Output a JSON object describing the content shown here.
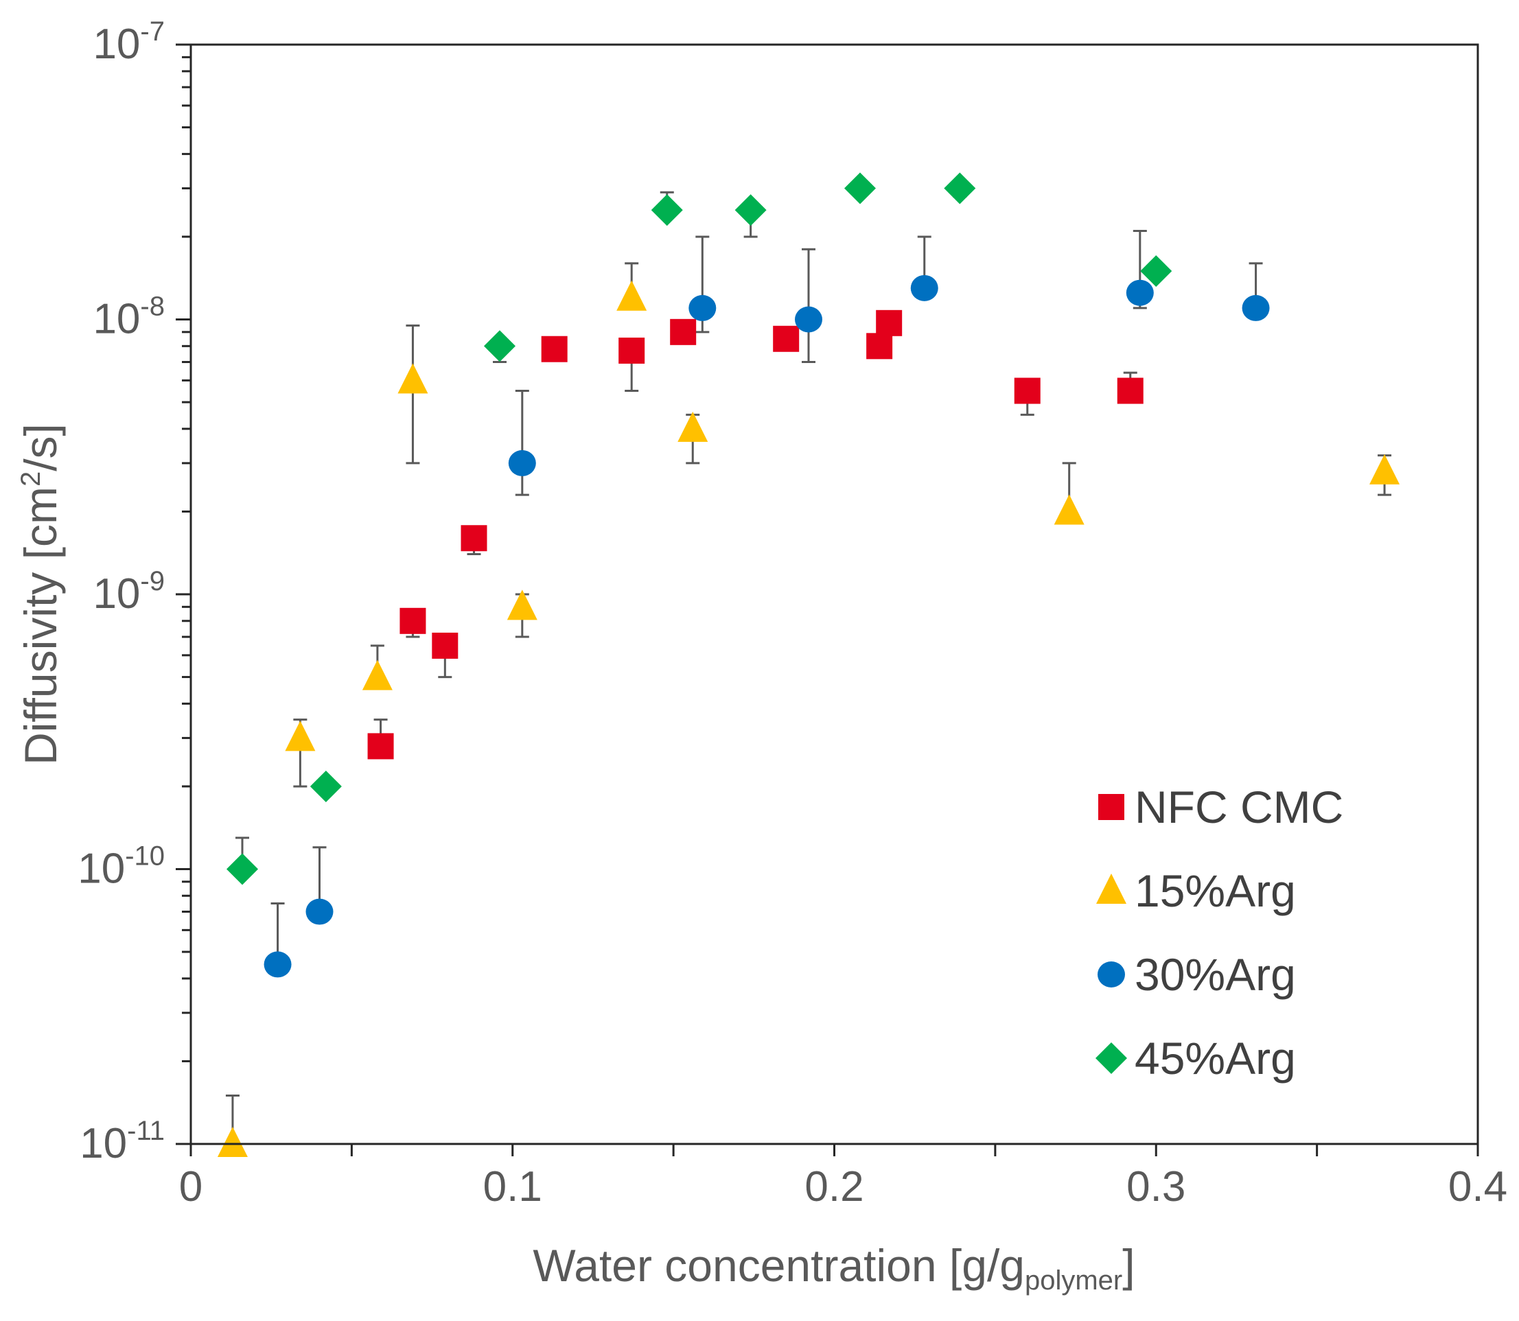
{
  "chart_data": {
    "type": "scatter",
    "xlabel": {
      "main": "Water concentration [g/g",
      "subscript": "polymer",
      "suffix": "]"
    },
    "ylabel": {
      "main": "Diffusivity [cm",
      "superscript": "2",
      "suffix": "/s]"
    },
    "xlim": [
      0,
      0.4
    ],
    "ylim": [
      1e-11,
      1e-07
    ],
    "y_scale": "log",
    "grid": false,
    "legend_position": "right",
    "x_ticks": [
      {
        "value": 0,
        "label": "0"
      },
      {
        "value": 0.1,
        "label": "0.1"
      },
      {
        "value": 0.2,
        "label": "0.2"
      },
      {
        "value": 0.3,
        "label": "0.3"
      },
      {
        "value": 0.4,
        "label": "0.4"
      }
    ],
    "y_ticks": [
      {
        "value": 1e-07,
        "base": "10",
        "exp": "-7"
      },
      {
        "value": 1e-08,
        "base": "10",
        "exp": "-8"
      },
      {
        "value": 1e-09,
        "base": "10",
        "exp": "-9"
      },
      {
        "value": 1e-10,
        "base": "10",
        "exp": "-10"
      },
      {
        "value": 1e-11,
        "base": "10",
        "exp": "-11"
      }
    ],
    "error_bar_color": "#595959",
    "series": [
      {
        "name": "NFC CMC",
        "marker": "square",
        "color": "#E3001B",
        "points": [
          {
            "x": 0.059,
            "y": 2.8e-10,
            "err": 3.5e-10
          },
          {
            "x": 0.069,
            "y": 8e-10,
            "err": 7e-10
          },
          {
            "x": 0.079,
            "y": 6.5e-10,
            "err": 5e-10
          },
          {
            "x": 0.088,
            "y": 1.6e-09,
            "err": 1.4e-09
          },
          {
            "x": 0.113,
            "y": 7.8e-09,
            "err": null
          },
          {
            "x": 0.137,
            "y": 7.7e-09,
            "err": 5.5e-09
          },
          {
            "x": 0.153,
            "y": 9e-09,
            "err": null
          },
          {
            "x": 0.185,
            "y": 8.5e-09,
            "err": null
          },
          {
            "x": 0.214,
            "y": 8e-09,
            "err": null
          },
          {
            "x": 0.217,
            "y": 9.7e-09,
            "err": null
          },
          {
            "x": 0.26,
            "y": 5.5e-09,
            "err": 4.5e-09
          },
          {
            "x": 0.292,
            "y": 5.5e-09,
            "err": 6.4e-09
          }
        ]
      },
      {
        "name": "15%Arg",
        "marker": "triangle",
        "color": "#FFC000",
        "points": [
          {
            "x": 0.013,
            "y": 1e-11,
            "err": 1.5e-11
          },
          {
            "x": 0.034,
            "y": 3e-10,
            "err": 2e-10
          },
          {
            "x": 0.034,
            "y": 3e-10,
            "err": 3.5e-10
          },
          {
            "x": 0.058,
            "y": 5e-10,
            "err": 6.5e-10
          },
          {
            "x": 0.069,
            "y": 6e-09,
            "err": 3e-09
          },
          {
            "x": 0.069,
            "y": 6e-09,
            "err": 9.5e-09
          },
          {
            "x": 0.103,
            "y": 9e-10,
            "err": 7e-10
          },
          {
            "x": 0.103,
            "y": 9e-10,
            "err": 1e-09
          },
          {
            "x": 0.137,
            "y": 1.2e-08,
            "err": 1.6e-08
          },
          {
            "x": 0.156,
            "y": 4e-09,
            "err": 3e-09
          },
          {
            "x": 0.156,
            "y": 4e-09,
            "err": 4.5e-09
          },
          {
            "x": 0.273,
            "y": 2e-09,
            "err": 3e-09
          },
          {
            "x": 0.371,
            "y": 2.8e-09,
            "err": 2.3e-09
          },
          {
            "x": 0.371,
            "y": 2.8e-09,
            "err": 3.2e-09
          }
        ]
      },
      {
        "name": "30%Arg",
        "marker": "circle",
        "color": "#0070C0",
        "points": [
          {
            "x": 0.027,
            "y": 4.5e-11,
            "err": 7.5e-11
          },
          {
            "x": 0.04,
            "y": 7e-11,
            "err": 1.2e-10
          },
          {
            "x": 0.103,
            "y": 3e-09,
            "err": 2.3e-09
          },
          {
            "x": 0.103,
            "y": 3e-09,
            "err": 5.5e-09
          },
          {
            "x": 0.159,
            "y": 1.1e-08,
            "err": 9e-09
          },
          {
            "x": 0.159,
            "y": 1.1e-08,
            "err": 2e-08
          },
          {
            "x": 0.192,
            "y": 1e-08,
            "err": 7e-09
          },
          {
            "x": 0.192,
            "y": 1e-08,
            "err": 1.8e-08
          },
          {
            "x": 0.228,
            "y": 1.3e-08,
            "err": 2e-08
          },
          {
            "x": 0.295,
            "y": 1.25e-08,
            "err": 1.1e-08
          },
          {
            "x": 0.295,
            "y": 1.25e-08,
            "err": 2.1e-08
          },
          {
            "x": 0.331,
            "y": 1.1e-08,
            "err": 1.6e-08
          }
        ]
      },
      {
        "name": "45%Arg",
        "marker": "diamond",
        "color": "#00B050",
        "points": [
          {
            "x": 0.016,
            "y": 1e-10,
            "err": 1.3e-10
          },
          {
            "x": 0.042,
            "y": 2e-10,
            "err": null
          },
          {
            "x": 0.096,
            "y": 8e-09,
            "err": 7e-09
          },
          {
            "x": 0.148,
            "y": 2.5e-08,
            "err": 2.9e-08
          },
          {
            "x": 0.174,
            "y": 2.5e-08,
            "err": 2e-08
          },
          {
            "x": 0.208,
            "y": 3e-08,
            "err": null
          },
          {
            "x": 0.239,
            "y": 3e-08,
            "err": 2.8e-08
          },
          {
            "x": 0.3,
            "y": 1.5e-08,
            "err": null
          }
        ]
      }
    ]
  }
}
